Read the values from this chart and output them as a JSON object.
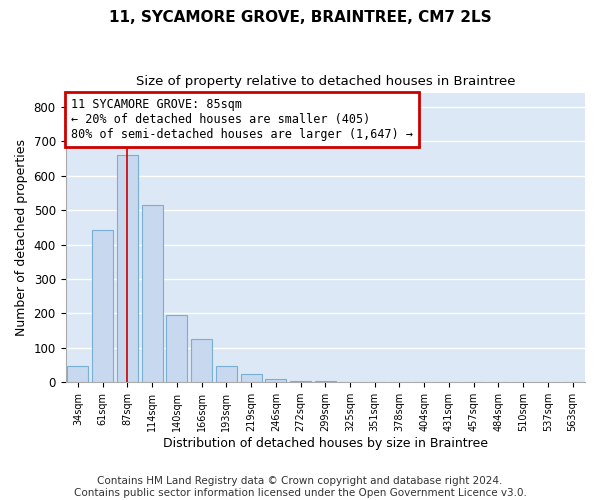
{
  "title": "11, SYCAMORE GROVE, BRAINTREE, CM7 2LS",
  "subtitle": "Size of property relative to detached houses in Braintree",
  "xlabel": "Distribution of detached houses by size in Braintree",
  "ylabel": "Number of detached properties",
  "categories": [
    "34sqm",
    "61sqm",
    "87sqm",
    "114sqm",
    "140sqm",
    "166sqm",
    "193sqm",
    "219sqm",
    "246sqm",
    "272sqm",
    "299sqm",
    "325sqm",
    "351sqm",
    "378sqm",
    "404sqm",
    "431sqm",
    "457sqm",
    "484sqm",
    "510sqm",
    "537sqm",
    "563sqm"
  ],
  "values": [
    48,
    444,
    660,
    514,
    195,
    125,
    48,
    25,
    10,
    5,
    5,
    0,
    0,
    0,
    0,
    0,
    0,
    0,
    0,
    0,
    0
  ],
  "bar_color": "#c8d8ee",
  "bar_edge_color": "#7aafd4",
  "vline_x_index": 2,
  "vline_color": "#cc0000",
  "annotation_line1": "11 SYCAMORE GROVE: 85sqm",
  "annotation_line2": "← 20% of detached houses are smaller (405)",
  "annotation_line3": "80% of semi-detached houses are larger (1,647) →",
  "annotation_box_color": "#cc0000",
  "annotation_bg_color": "#ffffff",
  "ylim": [
    0,
    840
  ],
  "yticks": [
    0,
    100,
    200,
    300,
    400,
    500,
    600,
    700,
    800
  ],
  "footer_line1": "Contains HM Land Registry data © Crown copyright and database right 2024.",
  "footer_line2": "Contains public sector information licensed under the Open Government Licence v3.0.",
  "plot_bg_color": "#dce8f5",
  "fig_bg_color": "#ffffff",
  "grid_color": "#ffffff",
  "title_fontsize": 11,
  "subtitle_fontsize": 9.5,
  "xlabel_fontsize": 9,
  "ylabel_fontsize": 9,
  "annot_fontsize": 8.5,
  "footer_fontsize": 7.5,
  "tick_fontsize": 7,
  "ytick_fontsize": 8.5
}
